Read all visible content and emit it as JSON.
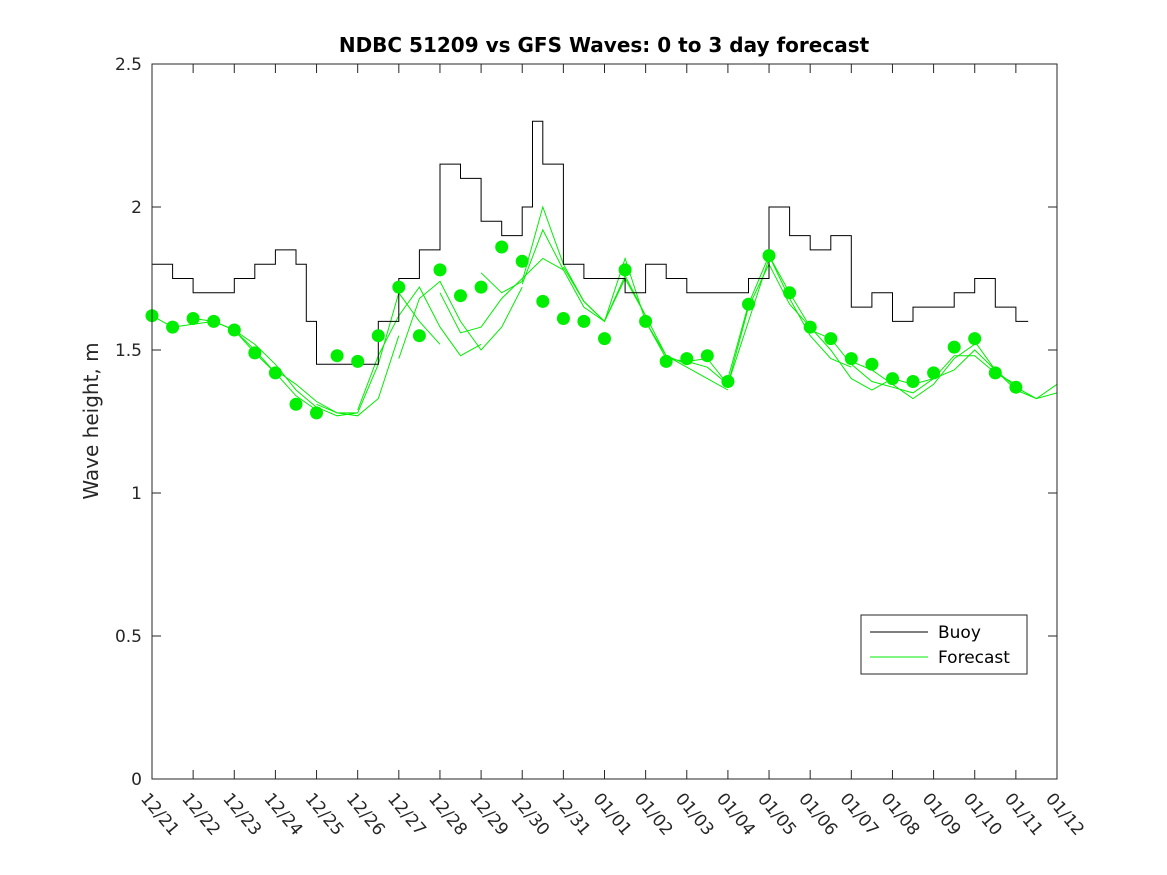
{
  "chart_data": {
    "type": "line",
    "title": "NDBC 51209 vs GFS Waves: 0 to 3 day forecast",
    "xlabel": "",
    "ylabel": "Wave height, m",
    "x_ticks": [
      "12/21",
      "12/22",
      "12/23",
      "12/24",
      "12/25",
      "12/26",
      "12/27",
      "12/28",
      "12/29",
      "12/30",
      "12/31",
      "01/01",
      "01/02",
      "01/03",
      "01/04",
      "01/05",
      "01/06",
      "01/07",
      "01/08",
      "01/09",
      "01/10",
      "01/11",
      "01/12"
    ],
    "x_range_days": [
      0,
      22
    ],
    "ylim": [
      0,
      2.5
    ],
    "y_ticks": [
      0,
      0.5,
      1,
      1.5,
      2,
      2.5
    ],
    "y_tick_labels": [
      "0",
      "0.5",
      "1",
      "1.5",
      "2",
      "2.5"
    ],
    "grid": false,
    "legend": {
      "position": "lower-right",
      "entries": [
        "Buoy",
        "Forecast"
      ]
    },
    "colors": {
      "buoy": "#000000",
      "forecast": "#00ee00",
      "axis": "#262626"
    },
    "buoy": {
      "name": "Buoy",
      "x": [
        0,
        0.5,
        1,
        1.5,
        2,
        2.5,
        3,
        3.5,
        3.75,
        4,
        4.5,
        5,
        5.5,
        6,
        6.5,
        7,
        7.5,
        8,
        8.5,
        9,
        9.25,
        9.5,
        10,
        10.5,
        11,
        11.5,
        12,
        12.5,
        13,
        13.5,
        14,
        14.5,
        15,
        15.5,
        16,
        16.5,
        17,
        17.5,
        18,
        18.5,
        19,
        19.5,
        20,
        20.5,
        21,
        21.3
      ],
      "y": [
        1.8,
        1.75,
        1.7,
        1.7,
        1.75,
        1.8,
        1.85,
        1.8,
        1.6,
        1.45,
        1.45,
        1.45,
        1.6,
        1.75,
        1.85,
        2.15,
        2.1,
        1.95,
        1.9,
        2.0,
        2.3,
        2.15,
        1.8,
        1.75,
        1.75,
        1.7,
        1.8,
        1.75,
        1.7,
        1.7,
        1.7,
        1.75,
        2.0,
        1.9,
        1.85,
        1.9,
        1.65,
        1.7,
        1.6,
        1.65,
        1.65,
        1.7,
        1.75,
        1.65,
        1.6,
        1.6
      ]
    },
    "forecast_runs": [
      {
        "x": [
          0,
          0.5,
          1,
          1.5,
          2,
          2.5,
          3
        ],
        "y": [
          1.62,
          1.58,
          1.59,
          1.6,
          1.57,
          1.49,
          1.42
        ]
      },
      {
        "x": [
          1,
          1.5,
          2,
          2.5,
          3,
          3.5,
          4
        ],
        "y": [
          1.61,
          1.6,
          1.57,
          1.5,
          1.42,
          1.34,
          1.29
        ]
      },
      {
        "x": [
          2,
          2.5,
          3,
          3.5,
          4,
          4.5,
          5
        ],
        "y": [
          1.57,
          1.52,
          1.45,
          1.36,
          1.3,
          1.27,
          1.28
        ]
      },
      {
        "x": [
          3,
          3.5,
          4,
          4.5,
          5,
          5.5,
          6
        ],
        "y": [
          1.43,
          1.38,
          1.32,
          1.28,
          1.27,
          1.33,
          1.55
        ]
      },
      {
        "x": [
          4,
          4.5,
          5,
          5.5,
          6,
          6.5,
          7
        ],
        "y": [
          1.31,
          1.28,
          1.28,
          1.45,
          1.7,
          1.6,
          1.52
        ]
      },
      {
        "x": [
          5,
          5.5,
          6,
          6.5,
          7,
          7.5,
          8
        ],
        "y": [
          1.29,
          1.48,
          1.62,
          1.72,
          1.58,
          1.48,
          1.52
        ]
      },
      {
        "x": [
          6,
          6.5,
          7,
          7.5,
          8,
          8.5,
          9
        ],
        "y": [
          1.47,
          1.68,
          1.74,
          1.6,
          1.5,
          1.58,
          1.72
        ]
      },
      {
        "x": [
          7,
          7.5,
          8,
          8.5,
          9,
          9.5,
          10
        ],
        "y": [
          1.7,
          1.56,
          1.58,
          1.68,
          1.75,
          1.82,
          1.78
        ]
      },
      {
        "x": [
          8,
          8.5,
          9,
          9.5,
          10,
          10.5,
          11
        ],
        "y": [
          1.77,
          1.7,
          1.74,
          2.0,
          1.8,
          1.67,
          1.6
        ]
      },
      {
        "x": [
          9,
          9.5,
          10,
          10.5,
          11,
          11.5,
          12
        ],
        "y": [
          1.73,
          1.92,
          1.78,
          1.65,
          1.6,
          1.76,
          1.62
        ]
      },
      {
        "x": [
          10,
          10.5,
          11,
          11.5,
          12,
          12.5,
          13
        ],
        "y": [
          1.79,
          1.67,
          1.6,
          1.82,
          1.6,
          1.48,
          1.45
        ]
      },
      {
        "x": [
          11,
          11.5,
          12,
          12.5,
          13,
          13.5,
          14
        ],
        "y": [
          1.6,
          1.75,
          1.62,
          1.48,
          1.44,
          1.4,
          1.36
        ]
      },
      {
        "x": [
          12,
          12.5,
          13,
          13.5,
          14,
          14.5,
          15
        ],
        "y": [
          1.6,
          1.47,
          1.46,
          1.44,
          1.38,
          1.6,
          1.82
        ]
      },
      {
        "x": [
          13,
          13.5,
          14,
          14.5,
          15,
          15.5,
          16
        ],
        "y": [
          1.46,
          1.47,
          1.38,
          1.65,
          1.8,
          1.66,
          1.58
        ]
      },
      {
        "x": [
          14,
          14.5,
          15,
          15.5,
          16,
          16.5,
          17
        ],
        "y": [
          1.4,
          1.66,
          1.83,
          1.68,
          1.55,
          1.47,
          1.44
        ]
      },
      {
        "x": [
          15,
          15.5,
          16,
          16.5,
          17,
          17.5,
          18
        ],
        "y": [
          1.83,
          1.7,
          1.58,
          1.5,
          1.4,
          1.36,
          1.4
        ]
      },
      {
        "x": [
          16,
          16.5,
          17,
          17.5,
          18,
          18.5,
          19
        ],
        "y": [
          1.57,
          1.54,
          1.45,
          1.39,
          1.37,
          1.35,
          1.4
        ]
      },
      {
        "x": [
          17,
          17.5,
          18,
          18.5,
          19,
          19.5,
          20
        ],
        "y": [
          1.46,
          1.43,
          1.38,
          1.33,
          1.38,
          1.47,
          1.52
        ]
      },
      {
        "x": [
          18,
          18.5,
          19,
          19.5,
          20,
          20.5,
          21
        ],
        "y": [
          1.4,
          1.38,
          1.4,
          1.48,
          1.48,
          1.42,
          1.38
        ]
      },
      {
        "x": [
          19,
          19.5,
          20,
          20.5,
          21,
          21.5,
          22
        ],
        "y": [
          1.4,
          1.43,
          1.5,
          1.43,
          1.37,
          1.33,
          1.38
        ]
      },
      {
        "x": [
          20,
          20.5,
          21,
          21.5,
          22
        ],
        "y": [
          1.53,
          1.43,
          1.36,
          1.33,
          1.35
        ]
      }
    ],
    "analysis_points": {
      "x": [
        0,
        0.5,
        1,
        1.5,
        2,
        2.5,
        3,
        3.5,
        4,
        4.5,
        5,
        5.5,
        6,
        6.5,
        7,
        7.5,
        8,
        8.5,
        9,
        9.5,
        10,
        10.5,
        11,
        11.5,
        12,
        12.5,
        13,
        13.5,
        14,
        14.5,
        15,
        15.5,
        16,
        16.5,
        17,
        17.5,
        18,
        18.5,
        19,
        19.5,
        20,
        20.5,
        21
      ],
      "y": [
        1.62,
        1.58,
        1.61,
        1.6,
        1.57,
        1.49,
        1.42,
        1.31,
        1.28,
        1.48,
        1.46,
        1.55,
        1.72,
        1.55,
        1.78,
        1.69,
        1.72,
        1.86,
        1.81,
        1.67,
        1.61,
        1.6,
        1.54,
        1.78,
        1.6,
        1.46,
        1.47,
        1.48,
        1.39,
        1.66,
        1.83,
        1.7,
        1.58,
        1.54,
        1.47,
        1.45,
        1.4,
        1.39,
        1.42,
        1.51,
        1.54,
        1.42,
        1.37
      ]
    }
  }
}
